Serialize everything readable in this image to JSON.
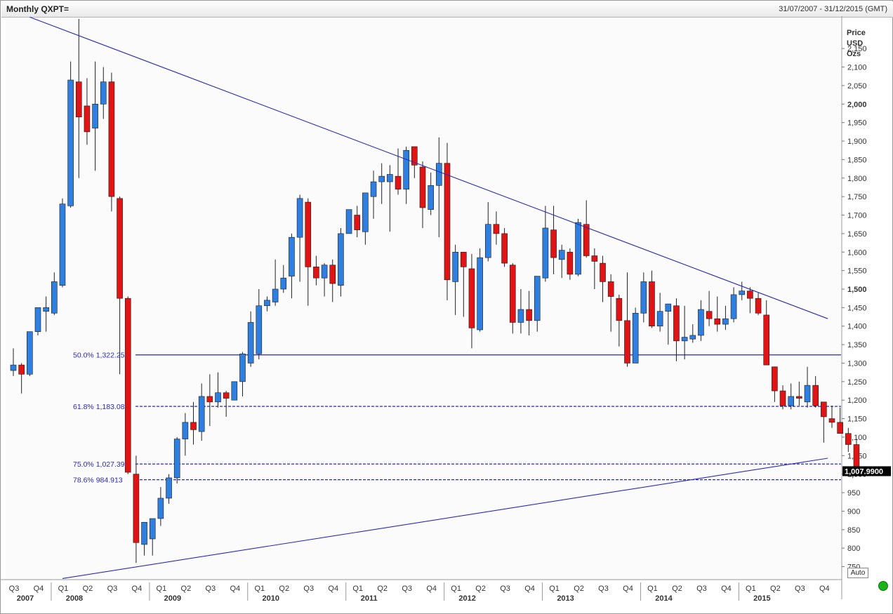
{
  "header": {
    "title": "Monthly QXPT=",
    "date_range": "31/07/2007 - 31/12/2015 (GMT)"
  },
  "controls": {
    "auto_label": "Auto"
  },
  "chart_data": {
    "type": "candlestick",
    "y_axis_title": [
      "Price",
      "USD",
      "Ozs"
    ],
    "ylim": [
      715,
      2230
    ],
    "y_ticks": [
      750,
      800,
      850,
      900,
      950,
      1000,
      1050,
      1100,
      1150,
      1200,
      1250,
      1300,
      1350,
      1400,
      1450,
      1500,
      1550,
      1600,
      1650,
      1700,
      1750,
      1800,
      1850,
      1900,
      1950,
      2000,
      2050,
      2100,
      2150
    ],
    "y_tick_labels": [
      "750",
      "800",
      "850",
      "900",
      "950",
      "1,000",
      "1,050",
      "1,100",
      "1,150",
      "1,200",
      "1,250",
      "1,300",
      "1,350",
      "1,400",
      "1,450",
      "1,500",
      "1,550",
      "1,600",
      "1,650",
      "1,700",
      "1,750",
      "1,800",
      "1,850",
      "1,900",
      "1,950",
      "2,000",
      "2,050",
      "2,100",
      "2,150"
    ],
    "bold_ticks": [
      1000,
      1500,
      2000
    ],
    "quarters": [
      {
        "label": "Q3",
        "year": "2007"
      },
      {
        "label": "Q4"
      },
      {
        "label": "Q1",
        "year": "2008"
      },
      {
        "label": "Q2"
      },
      {
        "label": "Q3"
      },
      {
        "label": "Q4"
      },
      {
        "label": "Q1",
        "year": "2009"
      },
      {
        "label": "Q2"
      },
      {
        "label": "Q3"
      },
      {
        "label": "Q4"
      },
      {
        "label": "Q1",
        "year": "2010"
      },
      {
        "label": "Q2"
      },
      {
        "label": "Q3"
      },
      {
        "label": "Q4"
      },
      {
        "label": "Q1",
        "year": "2011"
      },
      {
        "label": "Q2"
      },
      {
        "label": "Q3"
      },
      {
        "label": "Q4"
      },
      {
        "label": "Q1",
        "year": "2012"
      },
      {
        "label": "Q2"
      },
      {
        "label": "Q3"
      },
      {
        "label": "Q4"
      },
      {
        "label": "Q1",
        "year": "2013"
      },
      {
        "label": "Q2"
      },
      {
        "label": "Q3"
      },
      {
        "label": "Q4"
      },
      {
        "label": "Q1",
        "year": "2014"
      },
      {
        "label": "Q2"
      },
      {
        "label": "Q3"
      },
      {
        "label": "Q4"
      },
      {
        "label": "Q1",
        "year": "2015"
      },
      {
        "label": "Q2"
      },
      {
        "label": "Q3"
      },
      {
        "label": "Q4"
      }
    ],
    "fib_levels": [
      {
        "label": "50.0% 1,322.25",
        "value": 1322.25,
        "style": "solid"
      },
      {
        "label": "61.8% 1,183.089",
        "value": 1183.089,
        "style": "dashed"
      },
      {
        "label": "75.0% 1,027.396",
        "value": 1027.396,
        "style": "dashed"
      },
      {
        "label": "78.6% 984.913",
        "value": 984.913,
        "style": "dashed"
      }
    ],
    "trendlines": [
      {
        "from_month": 2,
        "from_price": 2235,
        "to_month": 99.5,
        "to_price": 1420
      },
      {
        "from_month": 6,
        "from_price": 718,
        "to_month": 99.5,
        "to_price": 1043
      }
    ],
    "last_price": {
      "value": 1007.99,
      "label": "1,007.9900"
    },
    "colors": {
      "up": "#2e7fe0",
      "down": "#e01414",
      "line": "#2a2ab5",
      "wick": "#222222"
    },
    "candles": [
      {
        "o": 1280,
        "h": 1340,
        "l": 1265,
        "c": 1295
      },
      {
        "o": 1295,
        "h": 1300,
        "l": 1218,
        "c": 1270
      },
      {
        "o": 1270,
        "h": 1385,
        "l": 1265,
        "c": 1385
      },
      {
        "o": 1385,
        "h": 1440,
        "l": 1375,
        "c": 1450
      },
      {
        "o": 1440,
        "h": 1480,
        "l": 1385,
        "c": 1450
      },
      {
        "o": 1435,
        "h": 1545,
        "l": 1430,
        "c": 1520
      },
      {
        "o": 1510,
        "h": 1745,
        "l": 1505,
        "c": 1730
      },
      {
        "o": 1725,
        "h": 2115,
        "l": 1720,
        "c": 2065
      },
      {
        "o": 2060,
        "h": 2230,
        "l": 1800,
        "c": 1965
      },
      {
        "o": 1995,
        "h": 2070,
        "l": 1890,
        "c": 1925
      },
      {
        "o": 1935,
        "h": 2115,
        "l": 1820,
        "c": 2000
      },
      {
        "o": 2000,
        "h": 2100,
        "l": 1960,
        "c": 2060
      },
      {
        "o": 2060,
        "h": 2085,
        "l": 1710,
        "c": 1750
      },
      {
        "o": 1745,
        "h": 1750,
        "l": 1270,
        "c": 1475
      },
      {
        "o": 1475,
        "h": 1480,
        "l": 1000,
        "c": 1005
      },
      {
        "o": 1000,
        "h": 1050,
        "l": 760,
        "c": 815
      },
      {
        "o": 810,
        "h": 870,
        "l": 780,
        "c": 870
      },
      {
        "o": 825,
        "h": 880,
        "l": 780,
        "c": 880
      },
      {
        "o": 880,
        "h": 965,
        "l": 860,
        "c": 935
      },
      {
        "o": 935,
        "h": 1000,
        "l": 920,
        "c": 990
      },
      {
        "o": 990,
        "h": 1100,
        "l": 975,
        "c": 1095
      },
      {
        "o": 1095,
        "h": 1165,
        "l": 1050,
        "c": 1140
      },
      {
        "o": 1140,
        "h": 1195,
        "l": 1080,
        "c": 1120
      },
      {
        "o": 1115,
        "h": 1245,
        "l": 1090,
        "c": 1210
      },
      {
        "o": 1210,
        "h": 1270,
        "l": 1130,
        "c": 1195
      },
      {
        "o": 1195,
        "h": 1275,
        "l": 1180,
        "c": 1220
      },
      {
        "o": 1220,
        "h": 1225,
        "l": 1155,
        "c": 1205
      },
      {
        "o": 1200,
        "h": 1245,
        "l": 1205,
        "c": 1250
      },
      {
        "o": 1250,
        "h": 1330,
        "l": 1210,
        "c": 1325
      },
      {
        "o": 1300,
        "h": 1440,
        "l": 1290,
        "c": 1410
      },
      {
        "o": 1325,
        "h": 1500,
        "l": 1310,
        "c": 1455
      },
      {
        "o": 1455,
        "h": 1480,
        "l": 1440,
        "c": 1470
      },
      {
        "o": 1465,
        "h": 1580,
        "l": 1455,
        "c": 1500
      },
      {
        "o": 1500,
        "h": 1565,
        "l": 1490,
        "c": 1530
      },
      {
        "o": 1535,
        "h": 1650,
        "l": 1475,
        "c": 1640
      },
      {
        "o": 1640,
        "h": 1755,
        "l": 1520,
        "c": 1745
      },
      {
        "o": 1735,
        "h": 1745,
        "l": 1455,
        "c": 1560
      },
      {
        "o": 1560,
        "h": 1590,
        "l": 1510,
        "c": 1530
      },
      {
        "o": 1530,
        "h": 1570,
        "l": 1480,
        "c": 1565
      },
      {
        "o": 1565,
        "h": 1580,
        "l": 1465,
        "c": 1515
      },
      {
        "o": 1510,
        "h": 1665,
        "l": 1480,
        "c": 1650
      },
      {
        "o": 1650,
        "h": 1710,
        "l": 1650,
        "c": 1715
      },
      {
        "o": 1700,
        "h": 1725,
        "l": 1640,
        "c": 1660
      },
      {
        "o": 1655,
        "h": 1760,
        "l": 1620,
        "c": 1760
      },
      {
        "o": 1750,
        "h": 1820,
        "l": 1690,
        "c": 1790
      },
      {
        "o": 1790,
        "h": 1840,
        "l": 1730,
        "c": 1805
      },
      {
        "o": 1790,
        "h": 1835,
        "l": 1655,
        "c": 1810
      },
      {
        "o": 1805,
        "h": 1880,
        "l": 1755,
        "c": 1770
      },
      {
        "o": 1770,
        "h": 1885,
        "l": 1730,
        "c": 1875
      },
      {
        "o": 1885,
        "h": 1880,
        "l": 1800,
        "c": 1835
      },
      {
        "o": 1830,
        "h": 1845,
        "l": 1665,
        "c": 1720
      },
      {
        "o": 1715,
        "h": 1815,
        "l": 1700,
        "c": 1780
      },
      {
        "o": 1780,
        "h": 1910,
        "l": 1640,
        "c": 1840
      },
      {
        "o": 1840,
        "h": 1895,
        "l": 1470,
        "c": 1525
      },
      {
        "o": 1520,
        "h": 1620,
        "l": 1430,
        "c": 1600
      },
      {
        "o": 1600,
        "h": 1590,
        "l": 1425,
        "c": 1560
      },
      {
        "o": 1555,
        "h": 1595,
        "l": 1340,
        "c": 1395
      },
      {
        "o": 1390,
        "h": 1610,
        "l": 1385,
        "c": 1585
      },
      {
        "o": 1585,
        "h": 1735,
        "l": 1575,
        "c": 1675
      },
      {
        "o": 1675,
        "h": 1710,
        "l": 1620,
        "c": 1650
      },
      {
        "o": 1650,
        "h": 1665,
        "l": 1560,
        "c": 1570
      },
      {
        "o": 1565,
        "h": 1570,
        "l": 1380,
        "c": 1410
      },
      {
        "o": 1410,
        "h": 1500,
        "l": 1380,
        "c": 1445
      },
      {
        "o": 1445,
        "h": 1495,
        "l": 1375,
        "c": 1415
      },
      {
        "o": 1415,
        "h": 1535,
        "l": 1385,
        "c": 1535
      },
      {
        "o": 1530,
        "h": 1725,
        "l": 1520,
        "c": 1665
      },
      {
        "o": 1660,
        "h": 1725,
        "l": 1540,
        "c": 1585
      },
      {
        "o": 1580,
        "h": 1620,
        "l": 1530,
        "c": 1605
      },
      {
        "o": 1600,
        "h": 1610,
        "l": 1525,
        "c": 1540
      },
      {
        "o": 1540,
        "h": 1690,
        "l": 1535,
        "c": 1680
      },
      {
        "o": 1675,
        "h": 1740,
        "l": 1585,
        "c": 1590
      },
      {
        "o": 1590,
        "h": 1610,
        "l": 1500,
        "c": 1575
      },
      {
        "o": 1570,
        "h": 1590,
        "l": 1465,
        "c": 1520
      },
      {
        "o": 1520,
        "h": 1540,
        "l": 1385,
        "c": 1480
      },
      {
        "o": 1475,
        "h": 1485,
        "l": 1345,
        "c": 1415
      },
      {
        "o": 1415,
        "h": 1545,
        "l": 1290,
        "c": 1300
      },
      {
        "o": 1300,
        "h": 1450,
        "l": 1300,
        "c": 1435
      },
      {
        "o": 1435,
        "h": 1545,
        "l": 1410,
        "c": 1520
      },
      {
        "o": 1520,
        "h": 1550,
        "l": 1395,
        "c": 1400
      },
      {
        "o": 1400,
        "h": 1490,
        "l": 1385,
        "c": 1440
      },
      {
        "o": 1440,
        "h": 1455,
        "l": 1350,
        "c": 1460
      },
      {
        "o": 1455,
        "h": 1475,
        "l": 1305,
        "c": 1360
      },
      {
        "o": 1360,
        "h": 1455,
        "l": 1310,
        "c": 1370
      },
      {
        "o": 1365,
        "h": 1405,
        "l": 1355,
        "c": 1375
      },
      {
        "o": 1375,
        "h": 1470,
        "l": 1360,
        "c": 1445
      },
      {
        "o": 1440,
        "h": 1495,
        "l": 1400,
        "c": 1420
      },
      {
        "o": 1420,
        "h": 1480,
        "l": 1385,
        "c": 1405
      },
      {
        "o": 1405,
        "h": 1455,
        "l": 1390,
        "c": 1420
      },
      {
        "o": 1420,
        "h": 1505,
        "l": 1410,
        "c": 1485
      },
      {
        "o": 1485,
        "h": 1520,
        "l": 1470,
        "c": 1495
      },
      {
        "o": 1495,
        "h": 1505,
        "l": 1435,
        "c": 1475
      },
      {
        "o": 1475,
        "h": 1490,
        "l": 1430,
        "c": 1435
      },
      {
        "o": 1430,
        "h": 1470,
        "l": 1295,
        "c": 1295
      },
      {
        "o": 1290,
        "h": 1290,
        "l": 1195,
        "c": 1225
      },
      {
        "o": 1225,
        "h": 1240,
        "l": 1175,
        "c": 1185
      },
      {
        "o": 1185,
        "h": 1245,
        "l": 1175,
        "c": 1210
      },
      {
        "o": 1210,
        "h": 1250,
        "l": 1185,
        "c": 1205
      },
      {
        "o": 1195,
        "h": 1290,
        "l": 1180,
        "c": 1240
      },
      {
        "o": 1240,
        "h": 1265,
        "l": 1180,
        "c": 1185
      },
      {
        "o": 1195,
        "h": 1195,
        "l": 1085,
        "c": 1155
      },
      {
        "o": 1150,
        "h": 1185,
        "l": 1125,
        "c": 1140
      },
      {
        "o": 1140,
        "h": 1180,
        "l": 1110,
        "c": 1110
      },
      {
        "o": 1110,
        "h": 1125,
        "l": 1060,
        "c": 1080
      },
      {
        "o": 1080,
        "h": 1095,
        "l": 1005,
        "c": 1008
      }
    ]
  }
}
